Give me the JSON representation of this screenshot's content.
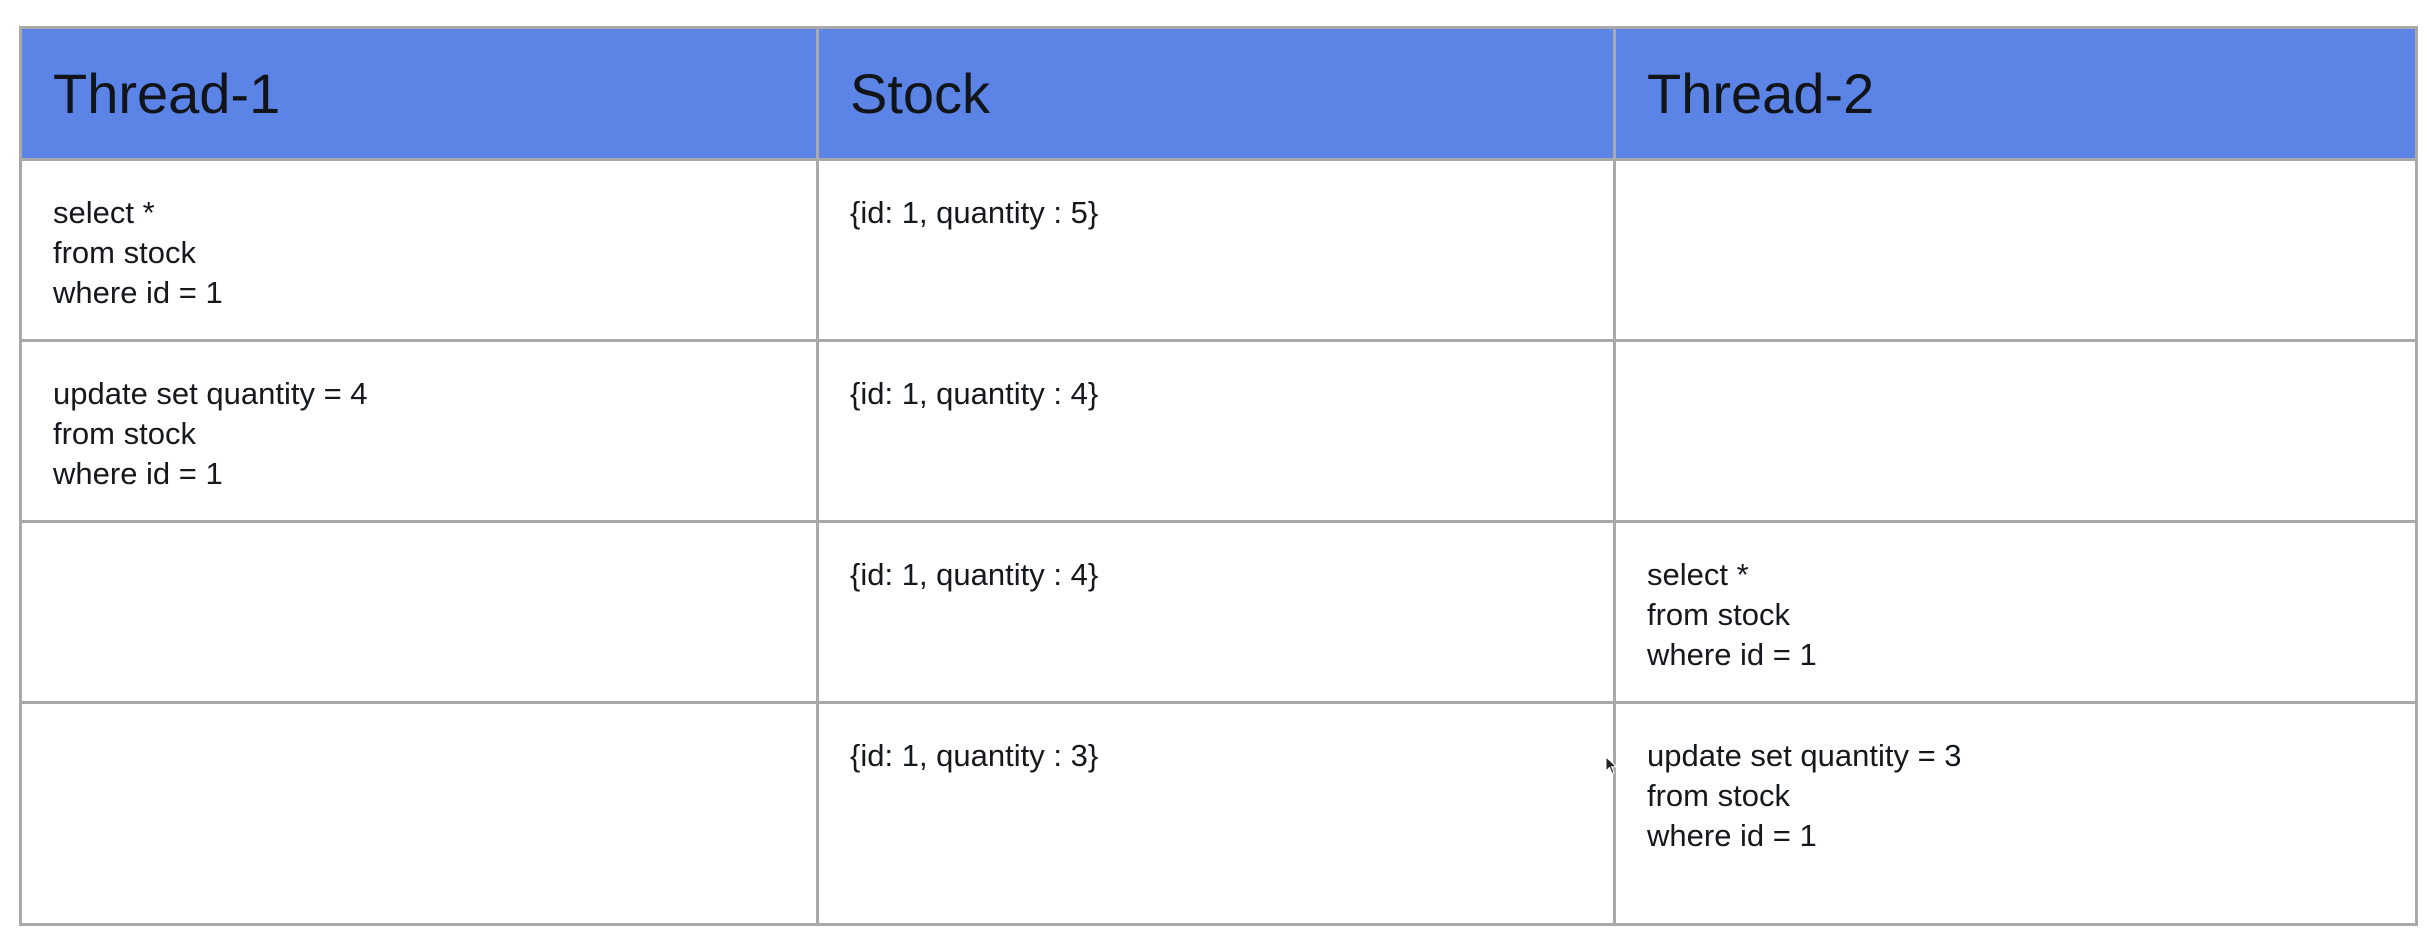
{
  "table": {
    "headers": [
      "Thread-1",
      "Stock",
      "Thread-2"
    ],
    "rows": [
      {
        "thread1": [
          "select *",
          "from stock",
          "where id = 1"
        ],
        "stock": [
          "{id: 1, quantity : 5}"
        ],
        "thread2": []
      },
      {
        "thread1": [
          "update set quantity = 4",
          "from stock",
          "where id = 1"
        ],
        "stock": [
          "{id: 1, quantity : 4}"
        ],
        "thread2": []
      },
      {
        "thread1": [],
        "stock": [
          "{id: 1, quantity : 4}"
        ],
        "thread2": [
          "select *",
          "from stock",
          "where id = 1"
        ]
      },
      {
        "thread1": [],
        "stock": [
          "{id: 1, quantity : 3}"
        ],
        "thread2": [
          "update set quantity = 3",
          "from stock",
          "where id = 1"
        ]
      }
    ]
  },
  "colors": {
    "header_bg": "#5b84e6",
    "border": "#a9a9a9",
    "text": "#15181c"
  },
  "icons": {
    "cursor": "mouse-pointer-icon"
  }
}
